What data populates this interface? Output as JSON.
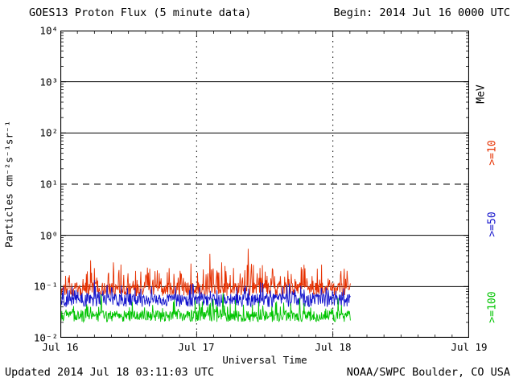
{
  "page": {
    "background": "#ffffff",
    "foreground": "#000000"
  },
  "header": {
    "title": "GOES13 Proton Flux (5 minute data)",
    "begin": "Begin: 2014 Jul 16 0000 UTC"
  },
  "footer": {
    "updated": "Updated 2014 Jul 18 03:11:03 UTC",
    "source": "NOAA/SWPC Boulder, CO USA"
  },
  "axes": {
    "y_label": "Particles cm⁻²s⁻¹sr⁻¹",
    "x_label": "Universal Time",
    "y_ticks": [
      "10⁴",
      "10³",
      "10²",
      "10¹",
      "10⁰",
      "10⁻¹",
      "10⁻²"
    ],
    "x_ticks": [
      "Jul 16",
      "Jul 17",
      "Jul 18",
      "Jul 19"
    ]
  },
  "right_labels": [
    {
      "text": "MeV",
      "color": "#000000"
    },
    {
      "text": ">=10",
      "color": "#e63000"
    },
    {
      "text": ">=50",
      "color": "#1414cc"
    },
    {
      "text": ">=100",
      "color": "#00c400"
    }
  ],
  "chart_data": {
    "type": "line",
    "title": "GOES13 Proton Flux (5 minute data)",
    "xlabel": "Universal Time",
    "ylabel": "Particles cm⁻²s⁻¹sr⁻¹",
    "x_axis": {
      "start": "2014 Jul 16 0000 UTC",
      "end": "2014 Jul 19 0000 UTC",
      "span_days": 3,
      "tick_labels": [
        "Jul 16",
        "Jul 17",
        "Jul 18",
        "Jul 19"
      ],
      "minor_tick_hours": 3
    },
    "y_axis": {
      "scale": "log10",
      "min": 0.01,
      "max": 10000,
      "decade_range": [
        -2,
        4
      ]
    },
    "gridlines": {
      "solid_log10": [
        3,
        2,
        0,
        -1
      ],
      "dashed_log10": [
        1
      ],
      "vertical_dotted_days": [
        1,
        2
      ]
    },
    "legend_position": "right",
    "series": [
      {
        "name": ">=10 MeV",
        "color": "#e63000",
        "start_day": 0,
        "end_day": 2.13,
        "points_per_day": 288,
        "base_log10": -1.05,
        "noise_log10": 0.13,
        "spike_prob": 0.28,
        "spike_max_log10": 0.42,
        "rare_spike_prob": 0.02,
        "rare_extra_log10": 0.22,
        "min_log10": -1.25,
        "typical_flux_range": [
          0.06,
          0.3
        ],
        "seed": 11
      },
      {
        "name": ">=50 MeV",
        "color": "#1414cc",
        "start_day": 0,
        "end_day": 2.13,
        "points_per_day": 288,
        "base_log10": -1.27,
        "noise_log10": 0.13,
        "spike_prob": 0.2,
        "spike_max_log10": 0.28,
        "rare_spike_prob": 0.01,
        "rare_extra_log10": 0.1,
        "min_log10": -1.48,
        "typical_flux_range": [
          0.03,
          0.12
        ],
        "seed": 22
      },
      {
        "name": ">=100 MeV",
        "color": "#00c400",
        "start_day": 0,
        "end_day": 2.13,
        "points_per_day": 288,
        "base_log10": -1.58,
        "noise_log10": 0.11,
        "spike_prob": 0.15,
        "spike_max_log10": 0.28,
        "rare_spike_prob": 0.006,
        "rare_extra_log10": 0.08,
        "min_log10": -1.76,
        "typical_flux_range": [
          0.017,
          0.06
        ],
        "seed": 33
      }
    ]
  }
}
